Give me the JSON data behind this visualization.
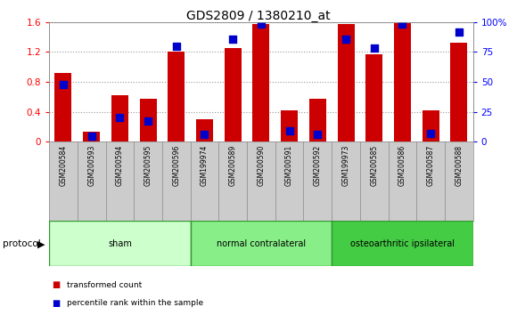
{
  "title": "GDS2809 / 1380210_at",
  "samples": [
    "GSM200584",
    "GSM200593",
    "GSM200594",
    "GSM200595",
    "GSM200596",
    "GSM199974",
    "GSM200589",
    "GSM200590",
    "GSM200591",
    "GSM200592",
    "GSM199973",
    "GSM200585",
    "GSM200586",
    "GSM200587",
    "GSM200588"
  ],
  "red_values": [
    0.92,
    0.13,
    0.62,
    0.57,
    1.2,
    0.3,
    1.25,
    1.57,
    0.42,
    0.57,
    1.57,
    1.17,
    1.58,
    0.42,
    1.32
  ],
  "blue_pct": [
    48,
    5,
    20,
    17,
    80,
    6,
    86,
    98,
    9,
    6,
    86,
    78,
    98,
    7,
    92
  ],
  "groups": [
    {
      "label": "sham",
      "start": 0,
      "end": 5,
      "color": "#ccffcc"
    },
    {
      "label": "normal contralateral",
      "start": 5,
      "end": 10,
      "color": "#88ee88"
    },
    {
      "label": "osteoarthritic ipsilateral",
      "start": 10,
      "end": 15,
      "color": "#44cc44"
    }
  ],
  "left_ylim": [
    0,
    1.6
  ],
  "right_ylim": [
    0,
    100
  ],
  "left_yticks": [
    0,
    0.4,
    0.8,
    1.2,
    1.6
  ],
  "right_yticks": [
    0,
    25,
    50,
    75,
    100
  ],
  "left_yticklabels": [
    "0",
    "0.4",
    "0.8",
    "1.2",
    "1.6"
  ],
  "right_yticklabels": [
    "0",
    "25",
    "50",
    "75",
    "100%"
  ],
  "bar_color": "#cc0000",
  "dot_color": "#0000cc",
  "bar_width": 0.6,
  "dot_size": 28,
  "bg_color": "#ffffff",
  "protocol_label": "protocol",
  "legend_items": [
    "transformed count",
    "percentile rank within the sample"
  ],
  "group_border_color": "#339933"
}
